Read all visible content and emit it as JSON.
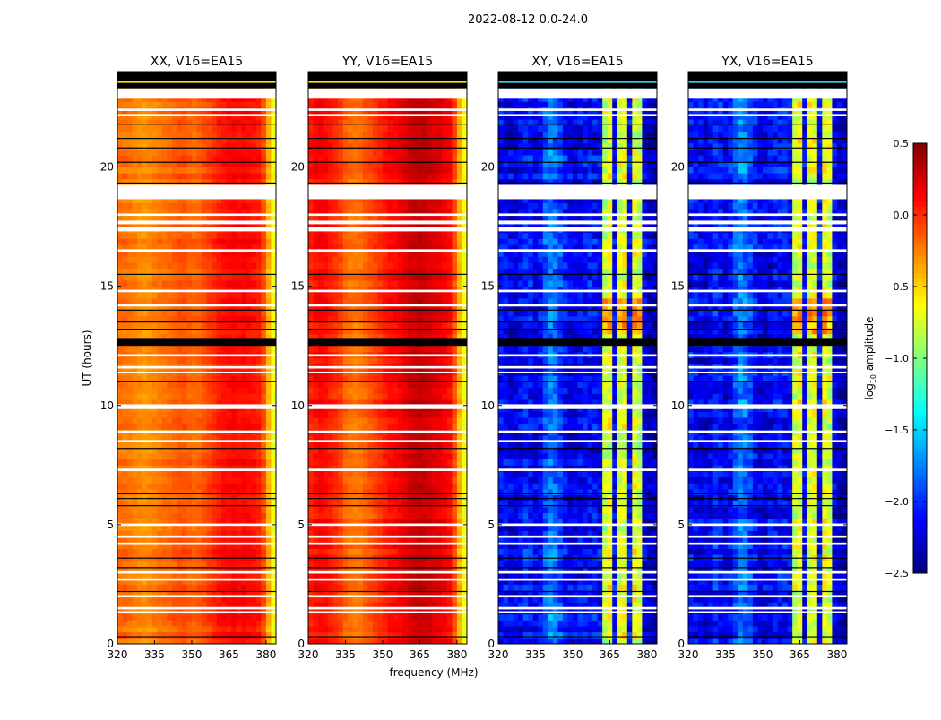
{
  "chart_data": {
    "type": "heatmap",
    "title": "2022-08-12 0.0-24.0",
    "xlabel": "frequency (MHz)",
    "ylabel": "UT (hours)",
    "xlim": [
      320,
      384
    ],
    "ylim": [
      0,
      24
    ],
    "xticks": [
      320,
      335,
      350,
      365,
      380
    ],
    "yticks": [
      0,
      5,
      10,
      15,
      20
    ],
    "freq_bin_mhz": 2,
    "time_bin_hours": 0.25,
    "colorbar": {
      "label_main": "log",
      "label_sub": "10",
      "label_rest": " amplitude",
      "range": [
        -2.5,
        0.5
      ],
      "ticks": [
        "0.5",
        "0.0",
        "−0.5",
        "−1.0",
        "−1.5",
        "−2.0",
        "−2.5"
      ],
      "tick_values": [
        0.5,
        0.0,
        -0.5,
        -1.0,
        -1.5,
        -2.0,
        -2.5
      ],
      "colormap": "jet"
    },
    "flagged_white_hours": [
      [
        22.9,
        23.3
      ],
      [
        22.35,
        22.45
      ],
      [
        22.15,
        22.22
      ],
      [
        18.65,
        19.25
      ],
      [
        17.95,
        18.05
      ],
      [
        17.6,
        17.75
      ],
      [
        17.3,
        17.5
      ],
      [
        16.45,
        16.55
      ],
      [
        14.75,
        14.85
      ],
      [
        14.15,
        14.25
      ],
      [
        12.05,
        12.15
      ],
      [
        11.55,
        11.65
      ],
      [
        11.35,
        11.42
      ],
      [
        9.85,
        10.05
      ],
      [
        8.85,
        8.95
      ],
      [
        8.45,
        8.55
      ],
      [
        7.25,
        7.35
      ],
      [
        4.95,
        5.05
      ],
      [
        4.45,
        4.55
      ],
      [
        4.15,
        4.25
      ],
      [
        2.95,
        3.05
      ],
      [
        2.65,
        2.75
      ],
      [
        1.95,
        2.05
      ],
      [
        1.45,
        1.55
      ],
      [
        1.3,
        1.37
      ]
    ],
    "flagged_black_hours": [
      [
        23.3,
        24.0
      ],
      [
        12.5,
        12.83
      ],
      [
        21.78,
        21.82
      ],
      [
        21.18,
        21.22
      ],
      [
        20.78,
        20.82
      ],
      [
        20.18,
        20.22
      ],
      [
        19.3,
        19.35
      ],
      [
        15.48,
        15.52
      ],
      [
        13.98,
        14.02
      ],
      [
        13.48,
        13.52
      ],
      [
        13.18,
        13.22
      ],
      [
        10.98,
        11.02
      ],
      [
        8.18,
        8.22
      ],
      [
        6.28,
        6.32
      ],
      [
        6.08,
        6.12
      ],
      [
        5.78,
        5.82
      ],
      [
        3.58,
        3.62
      ],
      [
        3.18,
        3.22
      ],
      [
        2.18,
        2.22
      ],
      [
        0.28,
        0.32
      ]
    ],
    "panels": [
      {
        "title": "XX, V16=EA15",
        "freq_profile": [
          -0.2,
          -0.2,
          -0.22,
          -0.25,
          -0.28,
          -0.3,
          -0.28,
          -0.25,
          -0.22,
          -0.2,
          -0.18,
          -0.15,
          -0.12,
          -0.12,
          -0.15,
          -0.18,
          -0.15,
          -0.1,
          -0.05,
          0.0,
          0.05,
          0.08,
          0.1,
          0.12,
          0.1,
          0.12,
          0.1,
          0.08,
          0.05,
          -0.1,
          -0.4,
          -0.65
        ]
      },
      {
        "title": "YY, V16=EA15",
        "freq_profile": [
          0.05,
          0.1,
          0.12,
          0.1,
          0.05,
          0.0,
          -0.05,
          -0.15,
          -0.2,
          -0.22,
          -0.2,
          -0.15,
          -0.1,
          -0.05,
          0.0,
          0.05,
          0.1,
          0.12,
          0.15,
          0.2,
          0.25,
          0.28,
          0.3,
          0.28,
          0.25,
          0.22,
          0.2,
          0.15,
          0.1,
          -0.1,
          -0.4,
          -0.65
        ]
      },
      {
        "title": "XY, V16=EA15",
        "freq_profile": [
          -2.1,
          -2.15,
          -2.2,
          -2.2,
          -2.15,
          -2.05,
          -2.1,
          -2.2,
          -2.1,
          -1.9,
          -1.75,
          -1.8,
          -1.95,
          -2.1,
          -2.2,
          -2.2,
          -2.15,
          -2.1,
          -2.1,
          -2.1,
          -2.15,
          -0.8,
          -0.7,
          -2.2,
          -0.75,
          -0.7,
          -2.1,
          -0.7,
          -0.8,
          -2.2,
          -2.3,
          -2.35
        ]
      },
      {
        "title": "YX, V16=EA15",
        "freq_profile": [
          -2.1,
          -2.15,
          -2.2,
          -2.2,
          -2.15,
          -2.05,
          -2.1,
          -2.2,
          -2.1,
          -1.9,
          -1.75,
          -1.8,
          -1.95,
          -2.1,
          -2.2,
          -2.2,
          -2.15,
          -2.1,
          -2.1,
          -2.1,
          -2.15,
          -0.8,
          -0.7,
          -2.2,
          -0.75,
          -0.7,
          -2.1,
          -0.7,
          -0.8,
          -2.2,
          -2.3,
          -2.35
        ]
      }
    ]
  }
}
